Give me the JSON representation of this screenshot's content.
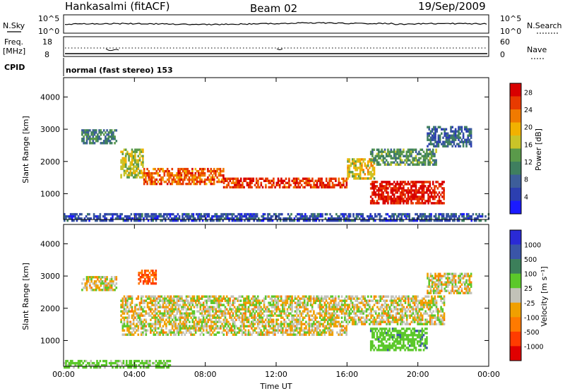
{
  "header": {
    "station": "Hankasalmi (fitACF)",
    "beam": "Beam 02",
    "date": "19/Sep/2009"
  },
  "noise_panel": {
    "left_label": "N.Sky",
    "right_label": "N.Search",
    "left_ticks": [
      "10^5",
      "10^0"
    ],
    "right_ticks": [
      "10^5",
      "10^0"
    ]
  },
  "freq_panel": {
    "left_label_1": "Freq.",
    "left_label_2": "[MHz]",
    "left_ticks": [
      "18",
      "8"
    ],
    "right_label": "Nave",
    "right_ticks": [
      "60",
      "0"
    ]
  },
  "cpid_panel": {
    "label": "CPID",
    "mode": "normal (fast stereo) 153"
  },
  "colors": {
    "power": [
      "#1a1aff",
      "#2c3fb0",
      "#3d5e9a",
      "#3f7f5f",
      "#5a9a4a",
      "#c9c428",
      "#f2b100",
      "#f07a00",
      "#e83a00",
      "#d80000"
    ],
    "velocity": [
      "#2a2ad6",
      "#3a55a8",
      "#3c7f5a",
      "#5bc82a",
      "#c2c2b8",
      "#f0a000",
      "#ff7a00",
      "#ff3c00",
      "#e00000"
    ]
  },
  "chart_data": [
    {
      "type": "heatmap",
      "title": "",
      "quantity": "Power",
      "xlabel": "",
      "ylabel": "Slant Range [km]",
      "x_ticks": [
        "00:00",
        "04:00",
        "08:00",
        "12:00",
        "16:00",
        "20:00",
        "00:00"
      ],
      "y_ticks": [
        "1000",
        "2000",
        "3000",
        "4000"
      ],
      "xlim": [
        0,
        24
      ],
      "ylim": [
        200,
        4600
      ],
      "colorbar": {
        "label": "Power [dB]",
        "ticks": [
          "4",
          "8",
          "12",
          "16",
          "20",
          "24",
          "28"
        ],
        "range": [
          0,
          30
        ]
      },
      "features": [
        {
          "x": [
            1.0,
            3.0
          ],
          "y": [
            2600,
            3000
          ],
          "value": 10
        },
        {
          "x": [
            3.2,
            4.5
          ],
          "y": [
            1500,
            2400
          ],
          "value": 16
        },
        {
          "x": [
            4.5,
            9.0
          ],
          "y": [
            1300,
            1800
          ],
          "value": 24
        },
        {
          "x": [
            9.0,
            16.0
          ],
          "y": [
            1200,
            1500
          ],
          "value": 26
        },
        {
          "x": [
            16.0,
            17.5
          ],
          "y": [
            1500,
            2100
          ],
          "value": 18
        },
        {
          "x": [
            17.3,
            21.5
          ],
          "y": [
            700,
            1400
          ],
          "value": 28
        },
        {
          "x": [
            17.3,
            21.0
          ],
          "y": [
            1900,
            2400
          ],
          "value": 12
        },
        {
          "x": [
            20.5,
            23.0
          ],
          "y": [
            2500,
            3100
          ],
          "value": 8
        },
        {
          "x": [
            0.0,
            24.0
          ],
          "y": [
            200,
            400
          ],
          "value": 6
        }
      ]
    },
    {
      "type": "heatmap",
      "title": "",
      "quantity": "Velocity",
      "xlabel": "Time UT",
      "ylabel": "Slant Range [km]",
      "x_ticks": [
        "00:00",
        "04:00",
        "08:00",
        "12:00",
        "16:00",
        "20:00",
        "00:00"
      ],
      "y_ticks": [
        "1000",
        "2000",
        "3000",
        "4000"
      ],
      "xlim": [
        0,
        24
      ],
      "ylim": [
        200,
        4600
      ],
      "colorbar": {
        "label": "Velocity [m s⁻¹]",
        "ticks": [
          "1000",
          "500",
          "100",
          "25",
          "-25",
          "-100",
          "-500",
          "-1000"
        ]
      },
      "features": [
        {
          "x": [
            1.0,
            3.0
          ],
          "y": [
            2600,
            3000
          ],
          "value": 0
        },
        {
          "x": [
            3.2,
            16.0
          ],
          "y": [
            1200,
            2400
          ],
          "value": 0
        },
        {
          "x": [
            4.2,
            5.2
          ],
          "y": [
            2800,
            3200
          ],
          "value": -300
        },
        {
          "x": [
            16.0,
            21.5
          ],
          "y": [
            1500,
            2400
          ],
          "value": 0
        },
        {
          "x": [
            17.3,
            20.5
          ],
          "y": [
            700,
            1400
          ],
          "value": 200
        },
        {
          "x": [
            20.5,
            23.0
          ],
          "y": [
            2500,
            3100
          ],
          "value": 0
        },
        {
          "x": [
            0.0,
            6.0
          ],
          "y": [
            200,
            400
          ],
          "value": 150
        }
      ]
    }
  ]
}
